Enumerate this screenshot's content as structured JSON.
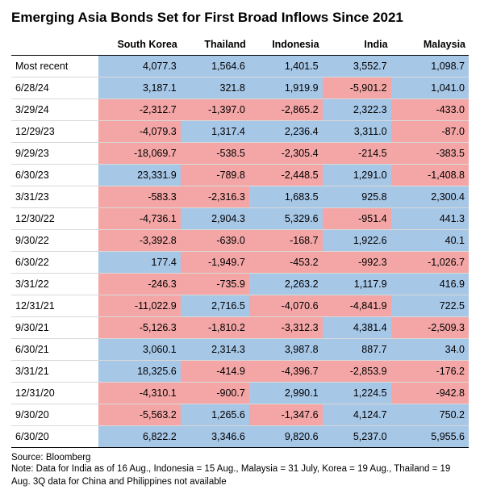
{
  "title": "Emerging Asia Bonds Set for First Broad Inflows Since 2021",
  "source": "Source: Bloomberg",
  "note": "Note: Data for India as of 16 Aug., Indonesia = 15 Aug., Malaysia = 31 July, Korea = 19 Aug., Thailand = 19 Aug. 3Q data for China and Philippines not available",
  "table": {
    "columns": [
      "South Korea",
      "Thailand",
      "Indonesia",
      "India",
      "Malaysia"
    ],
    "row_labels": [
      "Most recent",
      "6/28/24",
      "3/29/24",
      "12/29/23",
      "9/29/23",
      "6/30/23",
      "3/31/23",
      "12/30/22",
      "9/30/22",
      "6/30/22",
      "3/31/22",
      "12/31/21",
      "9/30/21",
      "6/30/21",
      "3/31/21",
      "12/31/20",
      "9/30/20",
      "6/30/20"
    ],
    "values": [
      [
        4077.3,
        1564.6,
        1401.5,
        3552.7,
        1098.7
      ],
      [
        3187.1,
        321.8,
        1919.9,
        -5901.2,
        1041.0
      ],
      [
        -2312.7,
        -1397.0,
        -2865.2,
        2322.3,
        -433.0
      ],
      [
        -4079.3,
        1317.4,
        2236.4,
        3311.0,
        -87.0
      ],
      [
        -18069.7,
        -538.5,
        -2305.4,
        -214.5,
        -383.5
      ],
      [
        23331.9,
        -789.8,
        -2448.5,
        1291.0,
        -1408.8
      ],
      [
        -583.3,
        -2316.3,
        1683.5,
        925.8,
        2300.4
      ],
      [
        -4736.1,
        2904.3,
        5329.6,
        -951.4,
        441.3
      ],
      [
        -3392.8,
        -639.0,
        -168.7,
        1922.6,
        40.1
      ],
      [
        177.4,
        -1949.7,
        -453.2,
        -992.3,
        -1026.7
      ],
      [
        -246.3,
        -735.9,
        2263.2,
        1117.9,
        416.9
      ],
      [
        -11022.9,
        2716.5,
        -4070.6,
        -4841.9,
        722.5
      ],
      [
        -5126.3,
        -1810.2,
        -3312.3,
        4381.4,
        -2509.3
      ],
      [
        3060.1,
        2314.3,
        3987.8,
        887.7,
        34.0
      ],
      [
        18325.6,
        -414.9,
        -4396.7,
        -2853.9,
        -176.2
      ],
      [
        -4310.1,
        -900.7,
        2990.1,
        1224.5,
        -942.8
      ],
      [
        -5563.2,
        1265.6,
        -1347.6,
        4124.7,
        750.2
      ],
      [
        6822.2,
        3346.6,
        9820.6,
        5237.0,
        5955.6
      ]
    ],
    "pos_color": "#a7c7e7",
    "neg_color": "#f4a6a6",
    "border_color": "#d9d9d9",
    "header_border": "#000000",
    "title_fontsize": 17,
    "body_fontsize": 12.5,
    "footer_fontsize": 11.5,
    "col_widths_pct": [
      19,
      18,
      15,
      16,
      15,
      17
    ]
  }
}
